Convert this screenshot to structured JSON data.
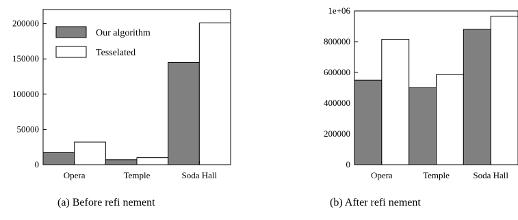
{
  "colors": {
    "our_algorithm": "#808080",
    "tesselated": "#ffffff",
    "axis": "#000000"
  },
  "chart_data": [
    {
      "type": "bar",
      "caption": "(a) Before refi nement",
      "categories": [
        "Opera",
        "Temple",
        "Soda Hall"
      ],
      "series": [
        {
          "name": "Our algorithm",
          "values": [
            17000,
            7000,
            145000
          ]
        },
        {
          "name": "Tesselated",
          "values": [
            32000,
            10000,
            201000
          ]
        }
      ],
      "ylim": [
        0,
        220000
      ],
      "yticks": [
        0,
        50000,
        100000,
        150000,
        200000
      ],
      "ytick_labels": [
        "0",
        "50000",
        "100000",
        "150000",
        "200000"
      ],
      "legend": "top-left",
      "grid": false
    },
    {
      "type": "bar",
      "caption": "(b) After refi nement",
      "categories": [
        "Opera",
        "Temple",
        "Soda Hall"
      ],
      "series": [
        {
          "name": "Our algorithm",
          "values": [
            550000,
            500000,
            880000
          ]
        },
        {
          "name": "Tesselated",
          "values": [
            815000,
            585000,
            965000
          ]
        }
      ],
      "ylim": [
        0,
        1000000
      ],
      "yticks": [
        0,
        200000,
        400000,
        600000,
        800000,
        1000000
      ],
      "ytick_labels": [
        "0",
        "200000",
        "400000",
        "600000",
        "800000",
        "1e+06"
      ],
      "legend": "none",
      "grid": false
    }
  ]
}
